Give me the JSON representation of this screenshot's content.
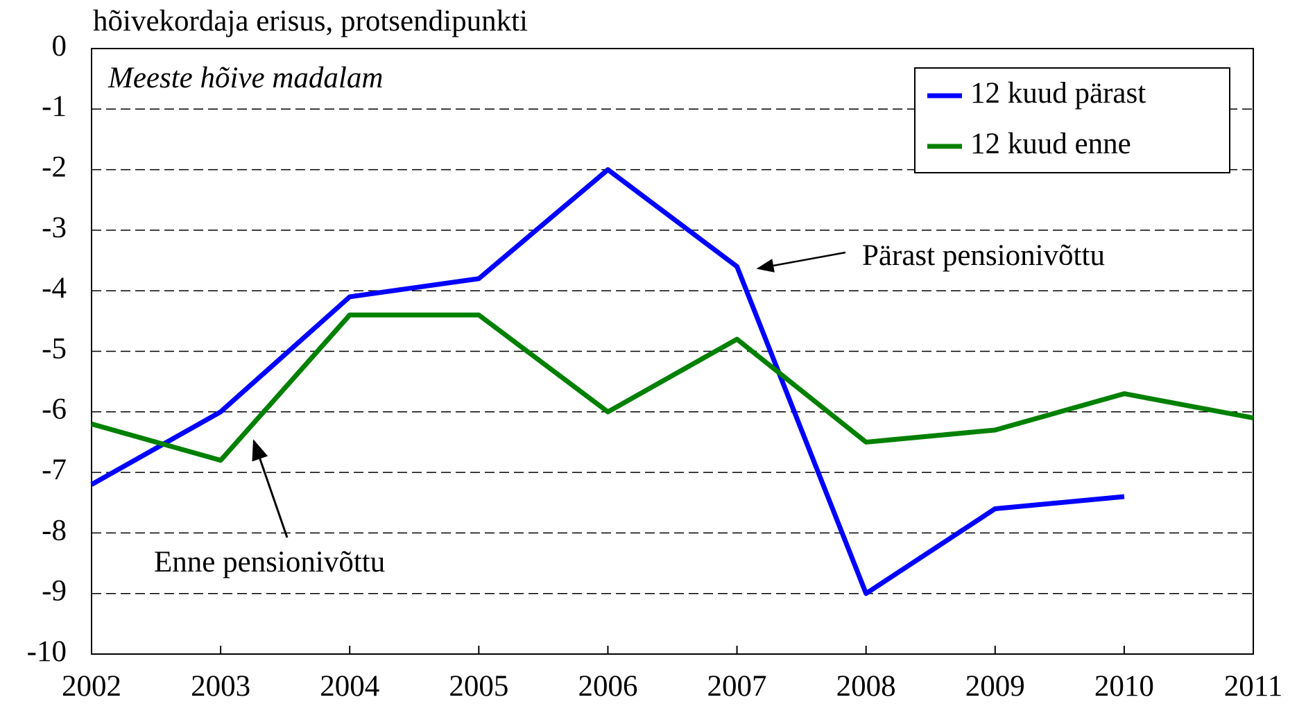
{
  "chart_data": {
    "type": "line",
    "title": "hõivekordaja erisus, protsendipunkti",
    "x": [
      2002,
      2003,
      2004,
      2005,
      2006,
      2007,
      2008,
      2009,
      2010,
      2011
    ],
    "series": [
      {
        "name": "12 kuud pärast",
        "color": "#0000ff",
        "values": [
          -7.2,
          -6.0,
          -4.1,
          -3.8,
          -2.0,
          -3.6,
          -9.0,
          -7.6,
          -7.4,
          null
        ]
      },
      {
        "name": "12 kuud enne",
        "color": "#008000",
        "values": [
          -6.2,
          -6.8,
          -4.4,
          -4.4,
          -6.0,
          -4.8,
          -6.5,
          -6.3,
          -5.7,
          -6.1
        ]
      }
    ],
    "xlim": [
      2002,
      2011
    ],
    "xticks": [
      2002,
      2003,
      2004,
      2005,
      2006,
      2007,
      2008,
      2009,
      2010,
      2011
    ],
    "ylim": [
      -10,
      0
    ],
    "yticks": [
      -10,
      -9,
      -8,
      -7,
      -6,
      -5,
      -4,
      -3,
      -2,
      -1,
      0
    ],
    "grid": true,
    "legend": "upper right",
    "annotations": [
      "Meeste hõive madalam",
      "Pärast pensionivõttu",
      "Enne pensionivõttu"
    ]
  }
}
